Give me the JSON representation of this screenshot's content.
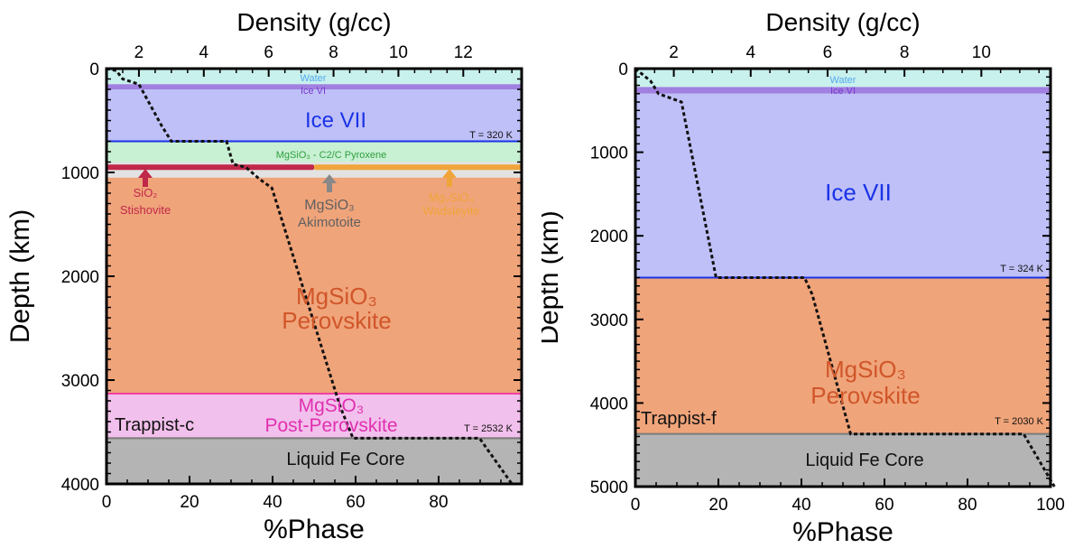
{
  "chart_data": [
    {
      "type": "area",
      "planet_label": "Trappist-c",
      "top_xlabel": "Density (g/cc)",
      "xlabel": "%Phase",
      "ylabel": "Depth (km)",
      "xlim": [
        0,
        100
      ],
      "ylim": [
        4000,
        0
      ],
      "density_lim": [
        1,
        13.8
      ],
      "x_ticks": [
        0,
        20,
        40,
        60,
        80
      ],
      "y_ticks": [
        0,
        1000,
        2000,
        3000,
        4000
      ],
      "density_ticks": [
        2,
        4,
        6,
        8,
        10,
        12
      ],
      "layers": [
        {
          "name": "Water",
          "top": 0,
          "bottom": 150,
          "fill": "#c8f0ec",
          "line": ""
        },
        {
          "name": "Ice VI",
          "top": 150,
          "bottom": 200,
          "fill": "#a080e0",
          "line": ""
        },
        {
          "name": "Ice VII",
          "top": 200,
          "bottom": 700,
          "fill": "#bfc0f8",
          "line": "#1a33e6"
        },
        {
          "name": "MgSiO3 - C2/C Pyroxene",
          "top": 700,
          "bottom": 900,
          "fill": "#c8f0d2",
          "line": ""
        },
        {
          "name": "SiO2 Stishovite",
          "top": 900,
          "bottom": 1050,
          "fill": "#e2e2e2",
          "line": ""
        },
        {
          "name": "MgSiO3 Perovskite",
          "top": 1050,
          "bottom": 3130,
          "fill": "#f0a47a",
          "line": "#f040a0"
        },
        {
          "name": "MgSiO3 Post-Perovskite",
          "top": 3130,
          "bottom": 3560,
          "fill": "#f2c0ec",
          "line": "#7a7a7a"
        },
        {
          "name": "Liquid Fe Core",
          "top": 3560,
          "bottom": 4000,
          "fill": "#b4b4b4",
          "line": ""
        }
      ],
      "phase_lines": [
        {
          "name": "SiO2 Stishovite",
          "depth": 950,
          "x_end": 50,
          "color": "#c0284a"
        },
        {
          "name": "Mg2SiO4 Wadsleyite",
          "depth": 950,
          "x_end": 100,
          "color": "#f0a43a"
        }
      ],
      "labels": [
        {
          "text": "Water",
          "color": "#55aaf0"
        },
        {
          "text": "Ice VI",
          "color": "#7a3ad0"
        },
        {
          "text": "Ice VII",
          "color": "#1a33e6"
        },
        {
          "text": "T = 320 K",
          "color": "#111111"
        },
        {
          "text": "MgSiO₃ - C2/C Pyroxene",
          "color": "#30a040"
        },
        {
          "text": "SiO₂",
          "color": "#c0284a"
        },
        {
          "text": "Stishovite",
          "color": "#c0284a"
        },
        {
          "text": "MgSiO₃",
          "color": "#606060"
        },
        {
          "text": "Akimotoite",
          "color": "#606060"
        },
        {
          "text": "Mg₂SiO₄",
          "color": "#f0a43a"
        },
        {
          "text": "Wadsleyite",
          "color": "#f0a43a"
        },
        {
          "text": "MgSiO₃",
          "color": "#d0562a"
        },
        {
          "text": "Perovskite",
          "color": "#d0562a"
        },
        {
          "text": "MgSiO₃",
          "color": "#e030b0"
        },
        {
          "text": "Post-Perovskite",
          "color": "#e030b0"
        },
        {
          "text": "Trappist-c",
          "color": "#111111"
        },
        {
          "text": "T = 2532 K",
          "color": "#111111"
        },
        {
          "text": "Liquid Fe Core",
          "color": "#111111"
        }
      ],
      "density_profile": [
        {
          "density": 1.0,
          "depth": 0
        },
        {
          "density": 1.3,
          "depth": 20
        },
        {
          "density": 1.5,
          "depth": 100
        },
        {
          "density": 2.0,
          "depth": 150
        },
        {
          "density": 2.7,
          "depth": 550
        },
        {
          "density": 3.0,
          "depth": 700
        },
        {
          "density": 4.7,
          "depth": 700
        },
        {
          "density": 4.9,
          "depth": 920
        },
        {
          "density": 5.3,
          "depth": 950
        },
        {
          "density": 5.7,
          "depth": 1060
        },
        {
          "density": 6.1,
          "depth": 1150
        },
        {
          "density": 8.2,
          "depth": 3250
        },
        {
          "density": 8.6,
          "depth": 3560
        },
        {
          "density": 12.5,
          "depth": 3560
        },
        {
          "density": 13.5,
          "depth": 4000
        }
      ]
    },
    {
      "type": "area",
      "planet_label": "Trappist-f",
      "top_xlabel": "Density (g/cc)",
      "xlabel": "%Phase",
      "ylabel": "Depth (km)",
      "xlim": [
        0,
        100
      ],
      "ylim": [
        5000,
        0
      ],
      "density_lim": [
        1,
        11.8
      ],
      "x_ticks": [
        0,
        20,
        40,
        60,
        80,
        100
      ],
      "y_ticks": [
        0,
        1000,
        2000,
        3000,
        4000,
        5000
      ],
      "density_ticks": [
        2,
        4,
        6,
        8,
        10
      ],
      "layers": [
        {
          "name": "Water",
          "top": 0,
          "bottom": 220,
          "fill": "#c8f0ec",
          "line": ""
        },
        {
          "name": "Ice VI",
          "top": 220,
          "bottom": 300,
          "fill": "#a080e0",
          "line": ""
        },
        {
          "name": "Ice VII",
          "top": 300,
          "bottom": 2500,
          "fill": "#bfc0f8",
          "line": "#1a33e6"
        },
        {
          "name": "MgSiO3 Perovskite",
          "top": 2500,
          "bottom": 4370,
          "fill": "#f0a47a",
          "line": "#7a7a7a"
        },
        {
          "name": "Liquid Fe Core",
          "top": 4370,
          "bottom": 5000,
          "fill": "#b4b4b4",
          "line": ""
        }
      ],
      "phase_lines": [],
      "labels": [
        {
          "text": "Water",
          "color": "#55aaf0"
        },
        {
          "text": "Ice VI",
          "color": "#7a3ad0"
        },
        {
          "text": "Ice VII",
          "color": "#1a33e6"
        },
        {
          "text": "T = 324 K",
          "color": "#111111"
        },
        {
          "text": "MgSiO₃",
          "color": "#d0562a"
        },
        {
          "text": "Perovskite",
          "color": "#d0562a"
        },
        {
          "text": "Trappist-f",
          "color": "#111111"
        },
        {
          "text": "T = 2030 K",
          "color": "#111111"
        },
        {
          "text": "Liquid Fe Core",
          "color": "#111111"
        }
      ],
      "density_profile": [
        {
          "density": 1.0,
          "depth": 0
        },
        {
          "density": 1.4,
          "depth": 150
        },
        {
          "density": 1.6,
          "depth": 300
        },
        {
          "density": 2.2,
          "depth": 400
        },
        {
          "density": 3.1,
          "depth": 2500
        },
        {
          "density": 5.4,
          "depth": 2500
        },
        {
          "density": 5.6,
          "depth": 2700
        },
        {
          "density": 6.6,
          "depth": 4370
        },
        {
          "density": 11.1,
          "depth": 4370
        },
        {
          "density": 11.9,
          "depth": 5000
        }
      ]
    }
  ]
}
